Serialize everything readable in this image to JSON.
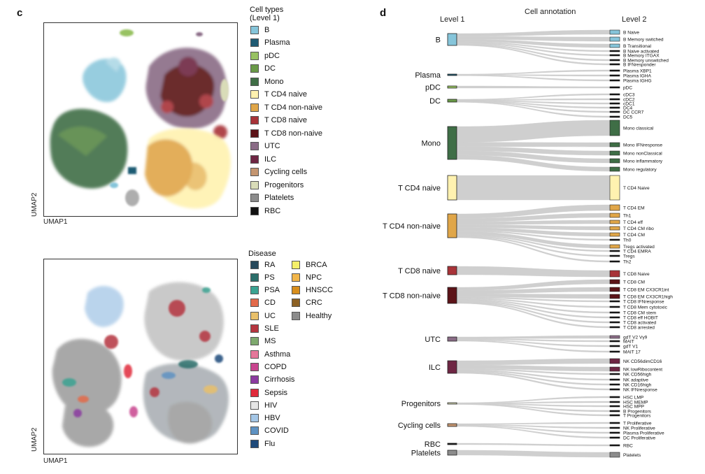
{
  "panel_c": {
    "letter": "c",
    "umap_axis_x": "UMAP1",
    "umap_axis_y": "UMAP2",
    "cell_legend": {
      "title_line1": "Cell types",
      "title_line2": "(Level 1)",
      "items": [
        {
          "label": "B",
          "color": "#86c5da"
        },
        {
          "label": "Plasma",
          "color": "#1f5b73"
        },
        {
          "label": "pDC",
          "color": "#98c262"
        },
        {
          "label": "DC",
          "color": "#6a9a48"
        },
        {
          "label": "Mono",
          "color": "#3f6e46"
        },
        {
          "label": "T CD4 naive",
          "color": "#fff2b0"
        },
        {
          "label": "T CD4 non-naive",
          "color": "#e0a648"
        },
        {
          "label": "T CD8 naive",
          "color": "#a83338"
        },
        {
          "label": "T CD8 non-naive",
          "color": "#5c1318"
        },
        {
          "label": "UTC",
          "color": "#8a6c86"
        },
        {
          "label": "ILC",
          "color": "#6e2643"
        },
        {
          "label": "Cycling cells",
          "color": "#c49570"
        },
        {
          "label": "Progenitors",
          "color": "#d9dcb8"
        },
        {
          "label": "Platelets",
          "color": "#8c8c8c"
        },
        {
          "label": "RBC",
          "color": "#111111"
        }
      ]
    },
    "disease_legend": {
      "title": "Disease",
      "col1": [
        {
          "label": "RA",
          "color": "#27485a"
        },
        {
          "label": "PS",
          "color": "#2b6e6a"
        },
        {
          "label": "PSA",
          "color": "#3aa392"
        },
        {
          "label": "CD",
          "color": "#e36a4a"
        },
        {
          "label": "UC",
          "color": "#e9c06a"
        },
        {
          "label": "SLE",
          "color": "#b5353f"
        },
        {
          "label": "MS",
          "color": "#7ea96e"
        },
        {
          "label": "Asthma",
          "color": "#e5779a"
        },
        {
          "label": "COPD",
          "color": "#c8458e"
        },
        {
          "label": "Cirrhosis",
          "color": "#8b3ba0"
        },
        {
          "label": "Sepsis",
          "color": "#e02a3a"
        },
        {
          "label": "HIV",
          "color": "#e6e6e6"
        },
        {
          "label": "HBV",
          "color": "#a4c6e6"
        },
        {
          "label": "COVID",
          "color": "#5e92c2"
        },
        {
          "label": "Flu",
          "color": "#1f4a7a"
        }
      ],
      "col2": [
        {
          "label": "BRCA",
          "color": "#f5f06a"
        },
        {
          "label": "NPC",
          "color": "#f2b64a"
        },
        {
          "label": "HNSCC",
          "color": "#d88e1c"
        },
        {
          "label": "CRC",
          "color": "#8c6124"
        },
        {
          "label": "Healthy",
          "color": "#8c8c8c"
        }
      ]
    }
  },
  "panel_d": {
    "letter": "d",
    "title": "Cell annotation",
    "level1_header": "Level 1",
    "level2_header": "Level 2",
    "level1": [
      {
        "label": "B",
        "color": "#86c5da"
      },
      {
        "label": "Plasma",
        "color": "#1f5b73"
      },
      {
        "label": "pDC",
        "color": "#98c262"
      },
      {
        "label": "DC",
        "color": "#6a9a48"
      },
      {
        "label": "Mono",
        "color": "#3f6e46"
      },
      {
        "label": "T CD4 naive",
        "color": "#fff2b0"
      },
      {
        "label": "T CD4 non-naive",
        "color": "#e0a648"
      },
      {
        "label": "T CD8 naive",
        "color": "#a83338"
      },
      {
        "label": "T CD8 non-naive",
        "color": "#5c1318"
      },
      {
        "label": "UTC",
        "color": "#8a6c86"
      },
      {
        "label": "ILC",
        "color": "#6e2643"
      },
      {
        "label": "Progenitors",
        "color": "#d9dcb8"
      },
      {
        "label": "Cycling cells",
        "color": "#c49570"
      },
      {
        "label": "RBC",
        "color": "#111111"
      },
      {
        "label": "Platelets",
        "color": "#8c8c8c"
      }
    ],
    "level2": [
      {
        "label": "B Naive",
        "parent": 0,
        "color": "#86c5da"
      },
      {
        "label": "B Memory switched",
        "parent": 0,
        "color": "#86c5da"
      },
      {
        "label": "B Transitional",
        "parent": 0,
        "color": "#86c5da"
      },
      {
        "label": "B Naive activated",
        "parent": 0,
        "color": "#111111"
      },
      {
        "label": "B Memory ITGAX",
        "parent": 0,
        "color": "#111111"
      },
      {
        "label": "B Memory unswitched",
        "parent": 0,
        "color": "#111111"
      },
      {
        "label": "B IFNresponder",
        "parent": 0,
        "color": "#111111"
      },
      {
        "label": "Plasma XBP1",
        "parent": 1,
        "color": "#111111"
      },
      {
        "label": "Plasma IGHA",
        "parent": 1,
        "color": "#111111"
      },
      {
        "label": "Plasma IGHG",
        "parent": 1,
        "color": "#111111"
      },
      {
        "label": "pDC",
        "parent": 2,
        "color": "#111111"
      },
      {
        "label": "cDC3",
        "parent": 3,
        "color": "#111111"
      },
      {
        "label": "cDC2",
        "parent": 3,
        "color": "#111111"
      },
      {
        "label": "cDC1",
        "parent": 3,
        "color": "#111111"
      },
      {
        "label": "DC4",
        "parent": 3,
        "color": "#111111"
      },
      {
        "label": "DC CCR7",
        "parent": 3,
        "color": "#111111"
      },
      {
        "label": "DC5",
        "parent": 3,
        "color": "#111111"
      },
      {
        "label": "Mono classical",
        "parent": 4,
        "color": "#3f6e46"
      },
      {
        "label": "Mono IFNresponse",
        "parent": 4,
        "color": "#3f6e46"
      },
      {
        "label": "Mono nonClassical",
        "parent": 4,
        "color": "#3f6e46"
      },
      {
        "label": "Mono inflammatory",
        "parent": 4,
        "color": "#3f6e46"
      },
      {
        "label": "Mono regulatory",
        "parent": 4,
        "color": "#3f6e46"
      },
      {
        "label": "T CD4 Naive",
        "parent": 5,
        "color": "#fff2b0"
      },
      {
        "label": "T CD4 EM",
        "parent": 6,
        "color": "#e0a648"
      },
      {
        "label": "Th1",
        "parent": 6,
        "color": "#e0a648"
      },
      {
        "label": "T CD4 eff",
        "parent": 6,
        "color": "#e0a648"
      },
      {
        "label": "T CD4 CM ribo",
        "parent": 6,
        "color": "#e0a648"
      },
      {
        "label": "T CD4 CM",
        "parent": 6,
        "color": "#e0a648"
      },
      {
        "label": "Th0",
        "parent": 6,
        "color": "#111111"
      },
      {
        "label": "Tregs activated",
        "parent": 6,
        "color": "#e0a648"
      },
      {
        "label": "T CD4 EMRA",
        "parent": 6,
        "color": "#111111"
      },
      {
        "label": "Tregs",
        "parent": 6,
        "color": "#111111"
      },
      {
        "label": "Th2",
        "parent": 6,
        "color": "#111111"
      },
      {
        "label": "T CD8 Naive",
        "parent": 7,
        "color": "#a83338"
      },
      {
        "label": "T CD8 CM",
        "parent": 8,
        "color": "#5c1318"
      },
      {
        "label": "T CD8 EM CX3CR1int",
        "parent": 8,
        "color": "#5c1318"
      },
      {
        "label": "T CD8 EM CX3CR1high",
        "parent": 8,
        "color": "#5c1318"
      },
      {
        "label": "T CD8 IFNresponse",
        "parent": 8,
        "color": "#111111"
      },
      {
        "label": "T CD8 Mem cytotoxic",
        "parent": 8,
        "color": "#111111"
      },
      {
        "label": "T CD8 CM stem",
        "parent": 8,
        "color": "#111111"
      },
      {
        "label": "T CD8 eff HOBIT",
        "parent": 8,
        "color": "#111111"
      },
      {
        "label": "T CD8 activated",
        "parent": 8,
        "color": "#111111"
      },
      {
        "label": "T CD8 arrested",
        "parent": 8,
        "color": "#111111"
      },
      {
        "label": "gdT V2 Vγ9",
        "parent": 9,
        "color": "#8a6c86"
      },
      {
        "label": "MAIT",
        "parent": 9,
        "color": "#111111"
      },
      {
        "label": "gdT V1",
        "parent": 9,
        "color": "#111111"
      },
      {
        "label": "MAIT 17",
        "parent": 9,
        "color": "#111111"
      },
      {
        "label": "NK CD56dimCD16",
        "parent": 10,
        "color": "#6e2643"
      },
      {
        "label": "NK lowRibocontent",
        "parent": 10,
        "color": "#6e2643"
      },
      {
        "label": "NK CD56high",
        "parent": 10,
        "color": "#111111"
      },
      {
        "label": "NK adaptive",
        "parent": 10,
        "color": "#111111"
      },
      {
        "label": "NK CD16high",
        "parent": 10,
        "color": "#111111"
      },
      {
        "label": "NK IFNresponse",
        "parent": 10,
        "color": "#111111"
      },
      {
        "label": "HSC LMP",
        "parent": 11,
        "color": "#111111"
      },
      {
        "label": "HSC MEMP",
        "parent": 11,
        "color": "#111111"
      },
      {
        "label": "HSC MPP",
        "parent": 11,
        "color": "#111111"
      },
      {
        "label": "B Progenitors",
        "parent": 11,
        "color": "#111111"
      },
      {
        "label": "T Progenitors",
        "parent": 11,
        "color": "#111111"
      },
      {
        "label": "T Proliferative",
        "parent": 12,
        "color": "#111111"
      },
      {
        "label": "NK Proliferative",
        "parent": 12,
        "color": "#111111"
      },
      {
        "label": "Plasma Proliferative",
        "parent": 12,
        "color": "#111111"
      },
      {
        "label": "DC Proliferative",
        "parent": 12,
        "color": "#111111"
      },
      {
        "label": "RBC",
        "parent": 13,
        "color": "#111111"
      },
      {
        "label": "Platelets",
        "parent": 14,
        "color": "#8c8c8c"
      }
    ]
  }
}
